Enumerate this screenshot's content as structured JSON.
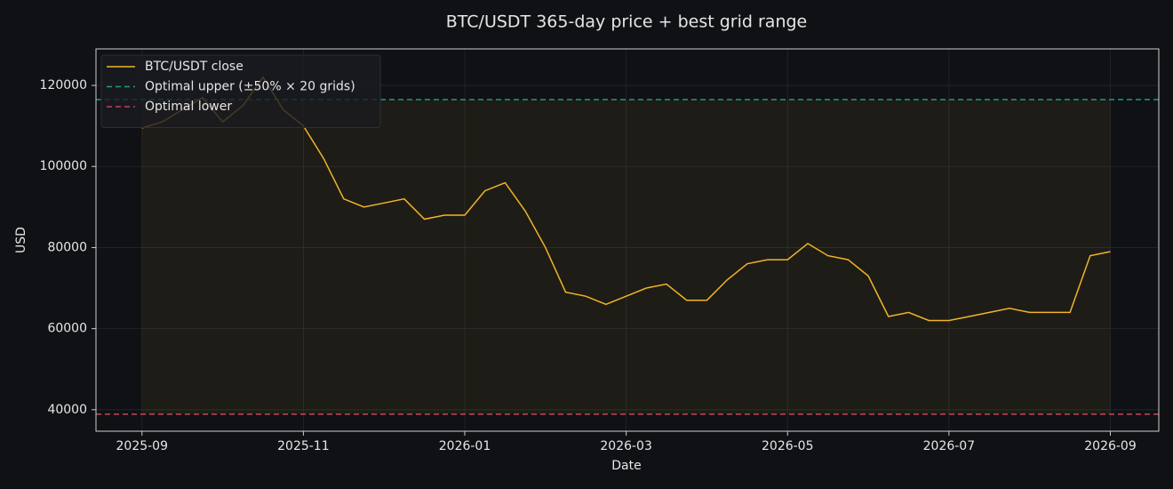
{
  "chart_data": {
    "type": "line",
    "title": "BTC/USDT 365-day price + best grid range",
    "x_label": "Date",
    "y_label": "USD",
    "x": [
      0,
      0.25,
      0.5,
      0.75,
      1,
      1.25,
      1.5,
      1.75,
      2,
      2.25,
      2.5,
      2.75,
      3,
      3.25,
      3.5,
      3.75,
      4,
      4.25,
      4.5,
      4.75,
      5,
      5.25,
      5.5,
      5.75,
      6,
      6.25,
      6.5,
      6.75,
      7,
      7.25,
      7.5,
      7.75,
      8,
      8.25,
      8.5,
      8.75,
      9,
      9.25,
      9.5,
      9.75,
      10,
      10.25,
      10.5,
      10.75,
      11,
      11.25,
      11.5,
      11.75,
      12
    ],
    "series": [
      {
        "name": "BTC/USDT close",
        "color": "#f0b429",
        "values": [
          109500,
          111000,
          114000,
          117000,
          111000,
          115000,
          122000,
          114000,
          110000,
          102000,
          92000,
          90000,
          91000,
          92000,
          87000,
          88000,
          88000,
          94000,
          96000,
          89000,
          80000,
          69000,
          68000,
          66000,
          68000,
          70000,
          71000,
          67000,
          67000,
          72000,
          76000,
          77000,
          77000,
          81000,
          78000,
          77000,
          73000,
          63000,
          64000,
          62000,
          62000,
          63000,
          64000,
          65000,
          64000,
          64000,
          64000,
          78000,
          79000
        ]
      }
    ],
    "hlines": [
      {
        "name": "Optimal upper (±50% × 20 grids)",
        "color": "#1f9c78",
        "value": 116500
      },
      {
        "name": "Optimal lower",
        "color": "#c2414e",
        "value": 38900
      }
    ],
    "xlim": [
      -0.57,
      12.6
    ],
    "ylim": [
      34700,
      129000
    ],
    "xticks": [
      {
        "value": 0,
        "label": "2025-09"
      },
      {
        "value": 2,
        "label": "2025-11"
      },
      {
        "value": 4,
        "label": "2026-01"
      },
      {
        "value": 6,
        "label": "2026-03"
      },
      {
        "value": 8,
        "label": "2026-05"
      },
      {
        "value": 10,
        "label": "2026-07"
      },
      {
        "value": 12,
        "label": "2026-09"
      }
    ],
    "yticks": [
      40000,
      60000,
      80000,
      100000,
      120000
    ],
    "grid": true,
    "legend": "upper left"
  }
}
